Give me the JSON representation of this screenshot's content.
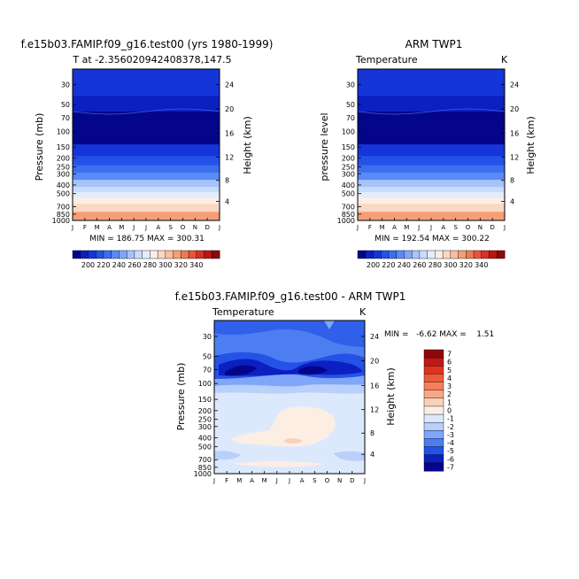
{
  "chart_data": [
    {
      "type": "heatmap",
      "title": "f.e15b03.FAMIP.f09_g16.test00 (yrs 1980-1999)",
      "subtitle": "T at -2.356020942408378,147.5",
      "ylabel": "Pressure (mb)",
      "ylabel_right": "Height (km)",
      "x_ticks": [
        "J",
        "F",
        "M",
        "A",
        "M",
        "J",
        "J",
        "A",
        "S",
        "O",
        "N",
        "D",
        "J"
      ],
      "y_ticks": [
        "30",
        "50",
        "70",
        "100",
        "150",
        "200",
        "250",
        "300",
        "400",
        "500",
        "700",
        "850",
        "1000"
      ],
      "y_values_mb": [
        30,
        50,
        70,
        100,
        150,
        200,
        250,
        300,
        400,
        500,
        700,
        850,
        1000
      ],
      "height_ticks_km": [
        "24",
        "20",
        "16",
        "12",
        "8",
        "4"
      ],
      "minmax": "MIN = 186.75 MAX = 300.31",
      "ylim_mb": [
        1000,
        20
      ],
      "bands": [
        {
          "top_mb": 20,
          "bottom_mb": 40,
          "value": 215
        },
        {
          "top_mb": 40,
          "bottom_mb": 60,
          "value": 205
        },
        {
          "top_mb": 60,
          "bottom_mb": 140,
          "value": 195
        },
        {
          "top_mb": 140,
          "bottom_mb": 190,
          "value": 210
        },
        {
          "top_mb": 190,
          "bottom_mb": 240,
          "value": 220
        },
        {
          "top_mb": 240,
          "bottom_mb": 290,
          "value": 230
        },
        {
          "top_mb": 290,
          "bottom_mb": 350,
          "value": 240
        },
        {
          "top_mb": 350,
          "bottom_mb": 420,
          "value": 250
        },
        {
          "top_mb": 420,
          "bottom_mb": 480,
          "value": 260
        },
        {
          "top_mb": 480,
          "bottom_mb": 560,
          "value": 270
        },
        {
          "top_mb": 560,
          "bottom_mb": 650,
          "value": 280
        },
        {
          "top_mb": 650,
          "bottom_mb": 800,
          "value": 290
        },
        {
          "top_mb": 800,
          "bottom_mb": 1000,
          "value": 300
        }
      ]
    },
    {
      "type": "heatmap",
      "title": "ARM TWP1",
      "subtitle_left": "Temperature",
      "subtitle_right": "K",
      "ylabel": "pressure level",
      "ylabel_right": "Height (km)",
      "x_ticks": [
        "J",
        "F",
        "M",
        "A",
        "M",
        "J",
        "J",
        "A",
        "S",
        "O",
        "N",
        "D",
        "J"
      ],
      "y_ticks": [
        "30",
        "50",
        "70",
        "100",
        "150",
        "200",
        "250",
        "300",
        "400",
        "500",
        "700",
        "850",
        "1000"
      ],
      "height_ticks_km": [
        "24",
        "20",
        "16",
        "12",
        "8",
        "4"
      ],
      "minmax": "MIN = 192.54 MAX = 300.22",
      "ylim_mb": [
        1000,
        20
      ],
      "bands": [
        {
          "top_mb": 20,
          "bottom_mb": 40,
          "value": 215
        },
        {
          "top_mb": 40,
          "bottom_mb": 60,
          "value": 205
        },
        {
          "top_mb": 60,
          "bottom_mb": 140,
          "value": 197
        },
        {
          "top_mb": 140,
          "bottom_mb": 190,
          "value": 210
        },
        {
          "top_mb": 190,
          "bottom_mb": 240,
          "value": 220
        },
        {
          "top_mb": 240,
          "bottom_mb": 290,
          "value": 230
        },
        {
          "top_mb": 290,
          "bottom_mb": 350,
          "value": 240
        },
        {
          "top_mb": 350,
          "bottom_mb": 420,
          "value": 250
        },
        {
          "top_mb": 420,
          "bottom_mb": 480,
          "value": 260
        },
        {
          "top_mb": 480,
          "bottom_mb": 560,
          "value": 270
        },
        {
          "top_mb": 560,
          "bottom_mb": 650,
          "value": 280
        },
        {
          "top_mb": 650,
          "bottom_mb": 800,
          "value": 290
        },
        {
          "top_mb": 800,
          "bottom_mb": 1000,
          "value": 300
        }
      ]
    },
    {
      "type": "heatmap",
      "title": "f.e15b03.FAMIP.f09_g16.test00 - ARM TWP1",
      "subtitle_left": "Temperature",
      "subtitle_right": "K",
      "ylabel": "Pressure (mb)",
      "ylabel_right": "Height (km)",
      "x_ticks": [
        "J",
        "F",
        "M",
        "A",
        "M",
        "J",
        "J",
        "A",
        "S",
        "O",
        "N",
        "D",
        "J"
      ],
      "y_ticks": [
        "30",
        "50",
        "70",
        "100",
        "150",
        "200",
        "250",
        "300",
        "400",
        "500",
        "700",
        "850",
        "1000"
      ],
      "height_ticks_km": [
        "24",
        "20",
        "16",
        "12",
        "8",
        "4"
      ],
      "minmax": "MIN =   -6.62 MAX =    1.51",
      "ylim_mb": [
        1000,
        20
      ],
      "features": [
        {
          "label": "cold core near 80 mb (spring)",
          "value": -6
        },
        {
          "label": "cold core near 80 mb (autumn)",
          "value": -6
        },
        {
          "label": "warm anomaly 200-600 mb",
          "value": 1
        },
        {
          "label": "warm max near 500 mb",
          "value": 1.5
        }
      ]
    }
  ],
  "colorbar_top": {
    "labels": [
      "200",
      "220",
      "240",
      "260",
      "280",
      "300",
      "320",
      "340"
    ],
    "colors": [
      "#05058a",
      "#0c1fc0",
      "#1535d8",
      "#2552e6",
      "#3c6ef0",
      "#5a8af5",
      "#7fa6f9",
      "#a6c3fb",
      "#c8dcfd",
      "#e3edfd",
      "#fdeee4",
      "#fbd8c3",
      "#f8be9d",
      "#f49f78",
      "#ee7a55",
      "#e6553a",
      "#d73024",
      "#bb1515",
      "#8d0808"
    ]
  },
  "colorbar_bottom": {
    "labels": [
      "7",
      "6",
      "5",
      "4",
      "3",
      "2",
      "1",
      "0",
      "-1",
      "-2",
      "-3",
      "-4",
      "-5",
      "-6",
      "-7"
    ],
    "colors": [
      "#8d0808",
      "#c01818",
      "#e03220",
      "#ee5a3a",
      "#f48060",
      "#f8a888",
      "#fbd0bb",
      "#fdeee4",
      "#dce9fc",
      "#b8d0fb",
      "#7fa6f9",
      "#4c7ef2",
      "#2552e6",
      "#0c1fc0",
      "#05058a"
    ]
  }
}
